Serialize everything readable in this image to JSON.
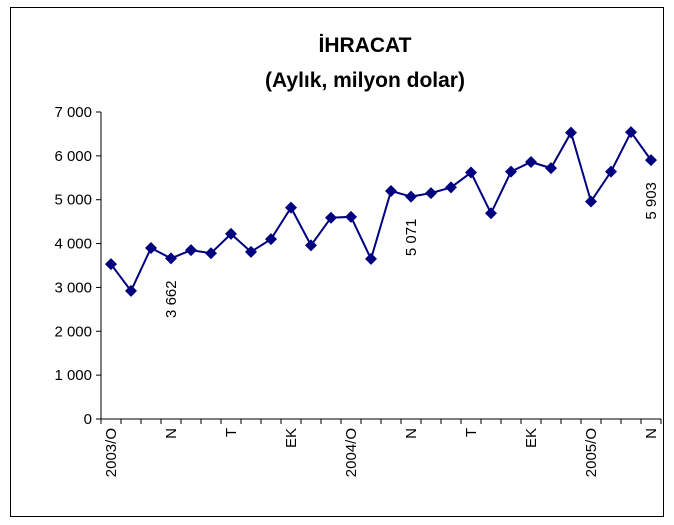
{
  "chart_data": {
    "type": "line",
    "title": "İHRACAT",
    "subtitle": "(Aylık, milyon dolar)",
    "categories": [
      "2003/O",
      null,
      null,
      "N",
      null,
      null,
      "T",
      null,
      null,
      "EK",
      null,
      null,
      "2004/O",
      null,
      null,
      "N",
      null,
      null,
      "T",
      null,
      null,
      "EK",
      null,
      null,
      "2005/O",
      null,
      null,
      "N"
    ],
    "series": [
      {
        "name": "İhracat",
        "color": "#000080",
        "values": [
          3530,
          2920,
          3900,
          3662,
          3850,
          3780,
          4220,
          3810,
          4100,
          4820,
          3960,
          4590,
          4610,
          3650,
          5200,
          5071,
          5150,
          5280,
          5620,
          4690,
          5640,
          5860,
          5720,
          6530,
          4960,
          5640,
          6540,
          5903
        ],
        "value_labels": [
          null,
          null,
          null,
          "3 662",
          null,
          null,
          null,
          null,
          null,
          null,
          null,
          null,
          null,
          null,
          null,
          "5 071",
          null,
          null,
          null,
          null,
          null,
          null,
          null,
          null,
          null,
          null,
          null,
          "5 903"
        ]
      }
    ],
    "ylim": [
      0,
      7000
    ],
    "yticks": [
      0,
      {
        "value": 1000,
        "label": "1 000"
      },
      {
        "value": 2000,
        "label": "2 000"
      },
      {
        "value": 3000,
        "label": "3 000"
      },
      {
        "value": 4000,
        "label": "4 000"
      },
      {
        "value": 5000,
        "label": "5 000"
      },
      {
        "value": 6000,
        "label": "6 000"
      },
      {
        "value": 7000,
        "label": "7 000"
      }
    ],
    "grid": false
  }
}
